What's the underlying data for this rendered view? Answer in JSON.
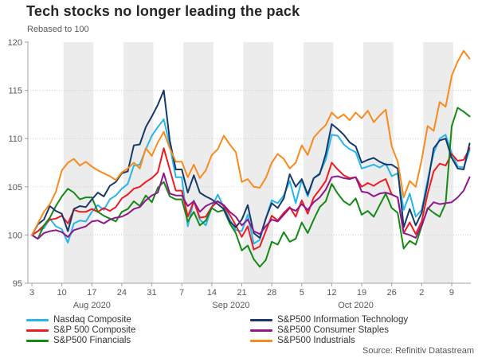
{
  "header": {
    "title": "Tech stocks no longer leading the pack",
    "subtitle": "Rebased to 100"
  },
  "source_note": "Source: Refinitiv Datastream",
  "chart_data": {
    "type": "line",
    "title": "Tech stocks no longer leading the pack",
    "subtitle": "Rebased to 100",
    "ylim": [
      95,
      120
    ],
    "y_ticks": [
      120,
      115,
      110,
      105,
      100,
      95
    ],
    "gridline_values": [
      115,
      110,
      105,
      100
    ],
    "grid": "dotted-horizontal",
    "legend_position": "bottom-two-columns",
    "background_week_shading_color": "#ececec",
    "x_ticks": [
      {
        "d": 0,
        "label": "3"
      },
      {
        "d": 5,
        "label": "10"
      },
      {
        "d": 10,
        "label": "17"
      },
      {
        "d": 15,
        "label": "24"
      },
      {
        "d": 20,
        "label": "31"
      },
      {
        "d": 25,
        "label": "7"
      },
      {
        "d": 30,
        "label": "14"
      },
      {
        "d": 35,
        "label": "21"
      },
      {
        "d": 40,
        "label": "28"
      },
      {
        "d": 45,
        "label": "5"
      },
      {
        "d": 50,
        "label": "12"
      },
      {
        "d": 55,
        "label": "19"
      },
      {
        "d": 60,
        "label": "26"
      },
      {
        "d": 65,
        "label": "2"
      },
      {
        "d": 70,
        "label": "9"
      }
    ],
    "month_labels": [
      {
        "d": 10,
        "label": "Aug 2020"
      },
      {
        "d": 33.2,
        "label": "Sep 2020"
      },
      {
        "d": 54,
        "label": "Oct 2020"
      }
    ],
    "shaded_weeks": [
      [
        5,
        10
      ],
      [
        15,
        20
      ],
      [
        25,
        30
      ],
      [
        35,
        40
      ],
      [
        45,
        50
      ],
      [
        55,
        60
      ],
      [
        65,
        70
      ]
    ],
    "dates": [
      "Aug 3",
      "Aug 4",
      "Aug 5",
      "Aug 6",
      "Aug 7",
      "Aug 10",
      "Aug 11",
      "Aug 12",
      "Aug 13",
      "Aug 14",
      "Aug 17",
      "Aug 18",
      "Aug 19",
      "Aug 20",
      "Aug 21",
      "Aug 24",
      "Aug 25",
      "Aug 26",
      "Aug 27",
      "Aug 28",
      "Aug 31",
      "Sep 1",
      "Sep 2",
      "Sep 3",
      "Sep 4",
      "Sep 7",
      "Sep 8",
      "Sep 9",
      "Sep 10",
      "Sep 11",
      "Sep 14",
      "Sep 15",
      "Sep 16",
      "Sep 17",
      "Sep 18",
      "Sep 21",
      "Sep 22",
      "Sep 23",
      "Sep 24",
      "Sep 25",
      "Sep 28",
      "Sep 29",
      "Sep 30",
      "Oct 1",
      "Oct 2",
      "Oct 5",
      "Oct 6",
      "Oct 7",
      "Oct 8",
      "Oct 9",
      "Oct 12",
      "Oct 13",
      "Oct 14",
      "Oct 15",
      "Oct 16",
      "Oct 19",
      "Oct 20",
      "Oct 21",
      "Oct 22",
      "Oct 23",
      "Oct 26",
      "Oct 27",
      "Oct 28",
      "Oct 29",
      "Oct 30",
      "Nov 2",
      "Nov 3",
      "Nov 4",
      "Nov 5",
      "Nov 6",
      "Nov 9",
      "Nov 10",
      "Nov 11",
      "Nov 12"
    ],
    "series": [
      {
        "name": "Nasdaq Composite",
        "color": "#27b5ea",
        "values": [
          100,
          100.4,
          100.7,
          101.7,
          100.9,
          100.6,
          99.2,
          101.2,
          101.5,
          101.4,
          102.4,
          103.1,
          102.6,
          103.7,
          104.1,
          104.8,
          105.3,
          107.2,
          107.3,
          108.9,
          110.3,
          111.2,
          112.0,
          109.3,
          106.0,
          106.0,
          100.9,
          103.6,
          101.6,
          101.0,
          102.9,
          104.2,
          102.9,
          101.6,
          100.5,
          100.4,
          102.1,
          99.1,
          99.5,
          101.7,
          103.6,
          103.3,
          104.1,
          105.6,
          103.3,
          105.7,
          104.0,
          105.9,
          106.4,
          107.8,
          110.4,
          110.3,
          109.4,
          108.9,
          108.6,
          106.9,
          107.1,
          107.3,
          107.0,
          107.4,
          106.1,
          106.4,
          102.6,
          104.3,
          101.9,
          102.6,
          105.7,
          108.5,
          110.0,
          110.4,
          108.5,
          107.1,
          107.0,
          108.8
        ]
      },
      {
        "name": "S&P 500 Composite",
        "color": "#ed1b23",
        "values": [
          100,
          100.4,
          101.0,
          101.6,
          101.7,
          102.0,
          101.2,
          102.6,
          102.4,
          102.4,
          102.7,
          102.4,
          102.8,
          102.5,
          102.9,
          103.8,
          104.2,
          104.8,
          105.0,
          105.5,
          105.9,
          106.5,
          109.0,
          106.8,
          104.6,
          104.6,
          101.9,
          103.5,
          101.8,
          101.9,
          102.9,
          103.5,
          103.0,
          102.1,
          101.0,
          99.8,
          100.9,
          98.5,
          98.8,
          100.4,
          102.0,
          101.5,
          102.3,
          102.9,
          101.9,
          103.6,
          102.2,
          103.9,
          104.7,
          105.6,
          107.5,
          106.8,
          106.2,
          105.9,
          106.0,
          105.0,
          105.4,
          105.1,
          105.5,
          105.8,
          104.2,
          103.9,
          100.2,
          101.3,
          100.1,
          101.4,
          104.3,
          106.6,
          107.4,
          107.2,
          108.4,
          107.7,
          107.8,
          109.0
        ]
      },
      {
        "name": "S&P500 Financials",
        "color": "#148a14",
        "values": [
          100,
          99.6,
          101.0,
          101.8,
          103.0,
          104.0,
          104.8,
          104.4,
          103.7,
          103.9,
          103.9,
          102.4,
          102.0,
          101.7,
          101.4,
          102.4,
          102.7,
          103.5,
          103.0,
          104.1,
          103.4,
          104.9,
          105.5,
          104.0,
          103.7,
          103.7,
          101.4,
          102.4,
          101.0,
          101.5,
          102.8,
          102.4,
          102.6,
          101.2,
          100.2,
          98.4,
          98.9,
          97.5,
          96.7,
          97.4,
          99.3,
          99.0,
          100.3,
          99.3,
          99.6,
          101.3,
          100.2,
          101.6,
          102.9,
          103.5,
          105.3,
          104.3,
          103.5,
          103.1,
          103.8,
          102.1,
          102.5,
          101.9,
          103.1,
          104.3,
          102.8,
          102.3,
          98.6,
          99.4,
          99.0,
          100.9,
          102.8,
          102.3,
          101.9,
          103.3,
          111.3,
          113.2,
          112.8,
          112.3
        ]
      },
      {
        "name": "S&P500 Information Technology",
        "color": "#17396a",
        "values": [
          100,
          101.1,
          101.6,
          103.0,
          102.5,
          102.2,
          100.4,
          102.7,
          103.0,
          102.9,
          103.7,
          104.4,
          104.0,
          105.1,
          105.5,
          106.4,
          106.6,
          109.3,
          109.4,
          111.2,
          112.3,
          113.5,
          115.0,
          109.8,
          106.8,
          106.8,
          104.4,
          106.2,
          104.4,
          104.0,
          103.7,
          103.2,
          102.7,
          101.4,
          100.8,
          101.6,
          103.1,
          100.2,
          99.7,
          101.7,
          103.3,
          102.8,
          103.8,
          106.3,
          105.0,
          105.8,
          104.2,
          105.9,
          106.3,
          108.4,
          111.5,
          111.0,
          110.4,
          109.6,
          109.2,
          107.5,
          107.8,
          108.0,
          107.6,
          107.3,
          107.3,
          106.9,
          100.8,
          102.7,
          101.0,
          102.3,
          105.3,
          109.0,
          109.8,
          110.0,
          108.0,
          106.9,
          106.8,
          109.5
        ]
      },
      {
        "name": "S&P500 Consumer Staples",
        "color": "#8e188c",
        "values": [
          100,
          99.6,
          100.2,
          100.4,
          100.5,
          100.3,
          99.8,
          100.5,
          100.7,
          100.9,
          101.4,
          101.5,
          101.2,
          101.6,
          101.8,
          101.9,
          102.2,
          102.7,
          102.9,
          103.6,
          104.1,
          104.4,
          106.4,
          104.3,
          104.1,
          104.1,
          103.0,
          103.5,
          102.4,
          103.0,
          103.3,
          103.5,
          103.1,
          102.4,
          101.9,
          101.0,
          101.6,
          100.4,
          100.1,
          100.9,
          101.6,
          101.4,
          102.1,
          102.8,
          102.5,
          103.2,
          102.6,
          103.4,
          103.9,
          104.7,
          106.0,
          106.1,
          105.9,
          105.8,
          106.0,
          104.5,
          104.4,
          104.0,
          104.3,
          104.4,
          104.2,
          103.9,
          100.2,
          100.0,
          99.7,
          101.0,
          102.7,
          103.4,
          103.2,
          103.3,
          103.4,
          103.9,
          104.6,
          106.0
        ]
      },
      {
        "name": "S&P500 Industrials",
        "color": "#f78b1e",
        "values": [
          100,
          101.2,
          102.4,
          103.2,
          104.5,
          106.7,
          107.5,
          107.9,
          107.2,
          107.6,
          107.1,
          106.7,
          106.4,
          106.1,
          105.7,
          106.5,
          106.9,
          107.5,
          106.9,
          109.0,
          108.2,
          109.6,
          110.7,
          109.0,
          107.6,
          107.6,
          106.0,
          107.3,
          105.9,
          106.7,
          108.3,
          108.9,
          110.3,
          109.4,
          108.6,
          105.5,
          105.8,
          105.0,
          104.9,
          105.9,
          107.5,
          108.4,
          107.9,
          106.9,
          107.5,
          109.3,
          108.3,
          110.1,
          110.8,
          111.4,
          112.7,
          112.1,
          112.5,
          111.9,
          112.7,
          112.1,
          112.9,
          111.7,
          112.4,
          113.0,
          109.2,
          107.6,
          103.9,
          105.6,
          105.0,
          107.8,
          111.3,
          110.8,
          113.8,
          113.3,
          116.5,
          118.0,
          119.1,
          118.3
        ]
      }
    ]
  }
}
